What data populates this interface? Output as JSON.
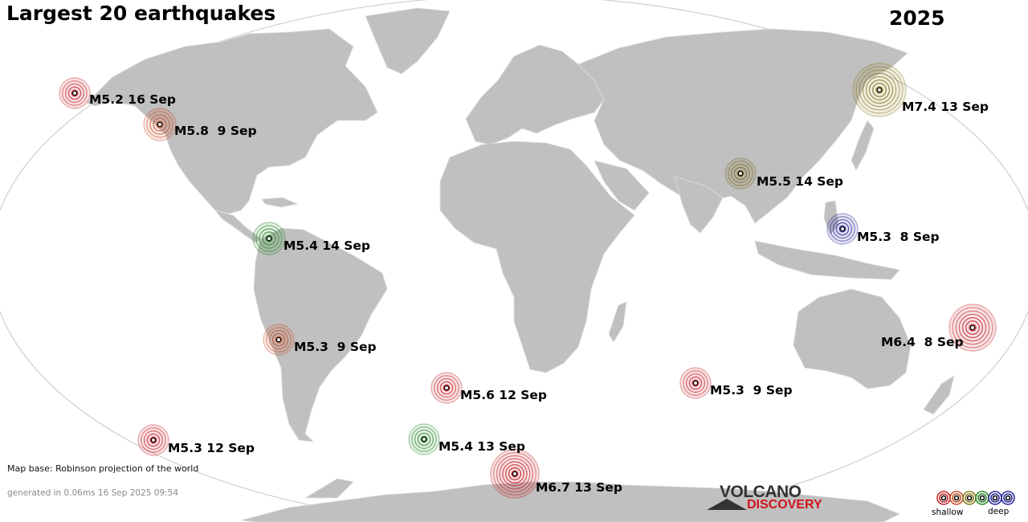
{
  "title": "Largest 20 earthquakes",
  "year": "2025",
  "colors": {
    "land": "#c0c0c0",
    "ocean": "#ffffff",
    "outline": "#d6d6d6",
    "shallow": "#c8252b",
    "shallow2": "#c8502b",
    "mid": "#7b6c22",
    "mid2": "#8a7c20",
    "green": "#2c8a2c",
    "deep": "#2a2a9a"
  },
  "quakes": [
    {
      "label": "M5.2 16 Sep",
      "color": "shallow"
    },
    {
      "label": "M5.8  9 Sep",
      "color": "shallow2"
    },
    {
      "label": "M7.4 13 Sep",
      "color": "mid2"
    },
    {
      "label": "M5.5 14 Sep",
      "color": "mid"
    },
    {
      "label": "M5.3  8 Sep",
      "color": "deep"
    },
    {
      "label": "M5.4 14 Sep",
      "color": "green"
    },
    {
      "label": "M5.3  9 Sep",
      "color": "shallow2"
    },
    {
      "label": "M6.4  8 Sep",
      "color": "shallow"
    },
    {
      "label": "M5.6 12 Sep",
      "color": "shallow"
    },
    {
      "label": "M5.3  9 Sep",
      "color": "shallow"
    },
    {
      "label": "M5.3 12 Sep",
      "color": "shallow"
    },
    {
      "label": "M5.4 13 Sep",
      "color": "green"
    },
    {
      "label": "M6.7 13 Sep",
      "color": "shallow"
    }
  ],
  "footer": {
    "map_base": "Map base: Robinson projection of the world",
    "generated": "generated in 0.06ms 16 Sep 2025 09:54"
  },
  "logo": {
    "line1": "VOLCANO",
    "line2": "DISCOVERY"
  },
  "legend": {
    "shallow": "shallow",
    "deep": "deep",
    "colors": [
      "#c8252b",
      "#c8502b",
      "#8a7c20",
      "#2c8a2c",
      "#2a2a9a",
      "#2a2a9a"
    ]
  }
}
